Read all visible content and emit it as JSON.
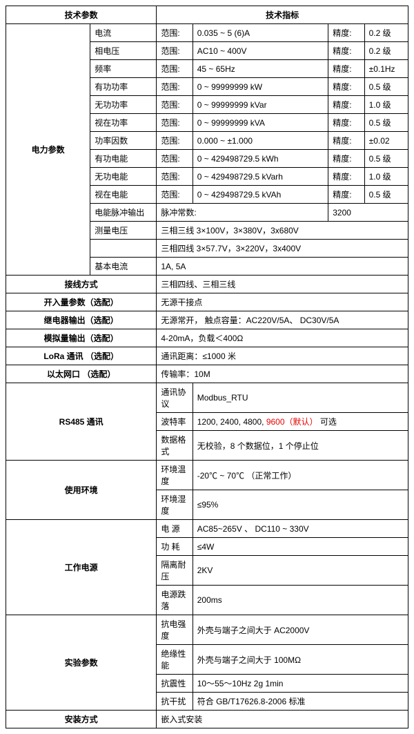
{
  "header": {
    "col1": "技术参数",
    "col2": "技术指标"
  },
  "power": {
    "label": "电力参数",
    "rows": [
      {
        "name": "电流",
        "rlabel": "范围:",
        "range": "0.035 ~ 5 (6)A",
        "plabel": "精度:",
        "prec": "0.2 级"
      },
      {
        "name": "相电压",
        "rlabel": "范围:",
        "range": "AC10 ~ 400V",
        "plabel": "精度:",
        "prec": "0.2 级"
      },
      {
        "name": "频率",
        "rlabel": "范围:",
        "range": "45 ~ 65Hz",
        "plabel": "精度:",
        "prec": "±0.1Hz"
      },
      {
        "name": "有功功率",
        "rlabel": "范围:",
        "range": "0  ~  99999999 kW",
        "plabel": "精度:",
        "prec": "0.5 级"
      },
      {
        "name": "无功功率",
        "rlabel": "范围:",
        "range": "0  ~  99999999 kVar",
        "plabel": "精度:",
        "prec": "1.0 级"
      },
      {
        "name": "视在功率",
        "rlabel": "范围:",
        "range": "0  ~  99999999 kVA",
        "plabel": "精度:",
        "prec": "0.5 级"
      },
      {
        "name": "功率因数",
        "rlabel": "范围:",
        "range": "0.000  ~  ±1.000",
        "plabel": "精度:",
        "prec": "±0.02"
      },
      {
        "name": "有功电能",
        "rlabel": "范围:",
        "range": "0 ~ 429498729.5 kWh",
        "plabel": "精度:",
        "prec": "0.5 级"
      },
      {
        "name": "无功电能",
        "rlabel": "范围:",
        "range": "0 ~ 429498729.5 kVarh",
        "plabel": "精度:",
        "prec": "1.0 级"
      },
      {
        "name": "视在电能",
        "rlabel": "范围:",
        "range": "0 ~ 429498729.5 kVAh",
        "plabel": "精度:",
        "prec": "0.5 级"
      }
    ],
    "pulse": {
      "name": "电能脉冲输出",
      "label": "脉冲常数:",
      "value": "3200"
    },
    "measureV": {
      "name": "测量电压",
      "line1": "三相三线 3×100V，3×380V，3x680V",
      "line2": "三相四线 3×57.7V，3×220V，3x400V"
    },
    "baseI": {
      "name": "基本电流",
      "value": "1A, 5A"
    }
  },
  "wiring": {
    "label": "接线方式",
    "value": "三相四线、三相三线"
  },
  "di": {
    "label": "开入量参数（选配）",
    "value": "无源干接点"
  },
  "relay": {
    "label": "继电器输出（选配）",
    "value": "无源常开，  触点容量：AC220V/5A、  DC30V/5A"
  },
  "analog": {
    "label": "模拟量输出（选配）",
    "value": "4-20mA，负载＜400Ω"
  },
  "lora": {
    "label": "LoRa 通讯  （选配）",
    "value": "通讯距离：≤1000 米"
  },
  "eth": {
    "label": "以太网口  （选配）",
    "value": "传输率：10M"
  },
  "rs485": {
    "label": "RS485 通讯",
    "proto": {
      "name": "通讯协议",
      "value": "Modbus_RTU"
    },
    "baud": {
      "name": "波特率",
      "pre": "1200, 2400, 4800, ",
      "hl": "9600（默认）",
      "post": "    可选"
    },
    "format": {
      "name": "数据格式",
      "value": "无校验，8 个数据位，1 个停止位"
    }
  },
  "env": {
    "label": "使用环境",
    "temp": {
      "name": "环境温度",
      "value": "-20℃   ~   70℃   （正常工作）"
    },
    "hum": {
      "name": "环境湿度",
      "value": "≤95%"
    }
  },
  "psu": {
    "label": "工作电源",
    "v": {
      "name": "电 源",
      "value": "AC85~265V  、 DC110 ~ 330V"
    },
    "p": {
      "name": "功 耗",
      "value": "≤4W"
    },
    "iso": {
      "name": "隔离耐压",
      "value": "2KV"
    },
    "dip": {
      "name": "电源跌落",
      "value": "200ms"
    }
  },
  "test": {
    "label": "实验参数",
    "d": {
      "name": "抗电强度",
      "value": "外壳与端子之间大于 AC2000V"
    },
    "i": {
      "name": "绝缘性能",
      "value": "外壳与端子之间大于  100MΩ"
    },
    "v": {
      "name": "抗震性",
      "value": "10～55～10Hz  2g   1min"
    },
    "e": {
      "name": "抗干扰",
      "value": "符合 GB/T17626.8-2006 标准"
    }
  },
  "mount": {
    "label": "安装方式",
    "value": "嵌入式安装"
  }
}
